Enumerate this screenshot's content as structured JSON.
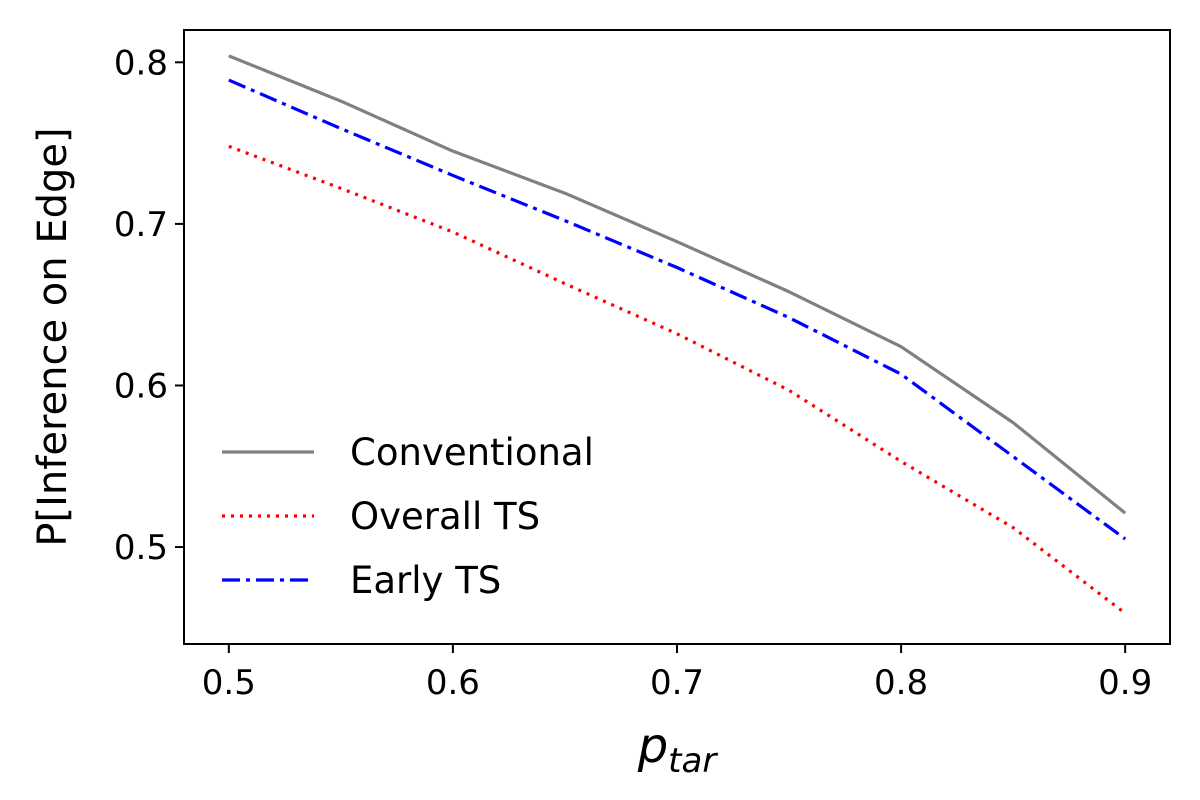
{
  "chart_data": {
    "type": "line",
    "xlabel": "p",
    "xlabel_subscript": "tar",
    "ylabel": "P[Inference on Edge]",
    "xlim": [
      0.48,
      0.92
    ],
    "ylim": [
      0.44,
      0.82
    ],
    "xticks": [
      "0.5",
      "0.6",
      "0.7",
      "0.8",
      "0.9"
    ],
    "yticks": [
      "0.5",
      "0.6",
      "0.7",
      "0.8"
    ],
    "grid": false,
    "legend_position": "lower-left",
    "x": [
      0.5,
      0.55,
      0.6,
      0.65,
      0.7,
      0.75,
      0.8,
      0.85,
      0.9
    ],
    "series": [
      {
        "name": "Conventional",
        "color": "#808080",
        "style": "solid",
        "values": [
          0.804,
          0.776,
          0.745,
          0.719,
          0.689,
          0.658,
          0.624,
          0.577,
          0.521
        ]
      },
      {
        "name": "Overall TS",
        "color": "#ff0000",
        "style": "dotted",
        "values": [
          0.748,
          0.722,
          0.695,
          0.663,
          0.632,
          0.597,
          0.553,
          0.512,
          0.459
        ]
      },
      {
        "name": "Early TS",
        "color": "#0000ff",
        "style": "dashdot",
        "values": [
          0.789,
          0.759,
          0.73,
          0.702,
          0.673,
          0.642,
          0.607,
          0.556,
          0.505
        ]
      }
    ]
  }
}
